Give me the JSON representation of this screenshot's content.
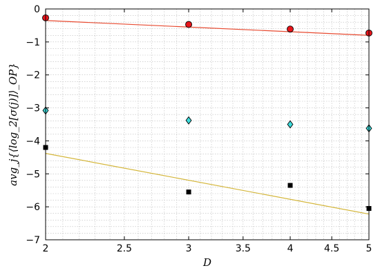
{
  "chart_data": {
    "type": "scatter",
    "title": "",
    "xlabel": "D",
    "ylabel": "avg_j{⟨log_2[σ(j)]⟩_OP}",
    "xscale": "log",
    "xlim": [
      2,
      5
    ],
    "ylim": [
      -7,
      0
    ],
    "grid": true,
    "legend": "none",
    "x_ticks": [
      {
        "value": 2,
        "label": "2"
      },
      {
        "value": 2.5,
        "label": "2.5"
      },
      {
        "value": 3,
        "label": "3"
      },
      {
        "value": 3.5,
        "label": "3.5"
      },
      {
        "value": 4,
        "label": "4"
      },
      {
        "value": 4.5,
        "label": "4.5"
      },
      {
        "value": 5,
        "label": "5"
      }
    ],
    "y_ticks": [
      {
        "value": 0,
        "label": "0"
      },
      {
        "value": -1,
        "label": "−1"
      },
      {
        "value": -2,
        "label": "−2"
      },
      {
        "value": -3,
        "label": "−3"
      },
      {
        "value": -4,
        "label": "−4"
      },
      {
        "value": -5,
        "label": "−5"
      },
      {
        "value": -6,
        "label": "−6"
      },
      {
        "value": -7,
        "label": "−7"
      }
    ],
    "series": [
      {
        "marker": "circle",
        "color": "#e8151b",
        "x": [
          2,
          3,
          4,
          5
        ],
        "y": [
          -0.27,
          -0.47,
          -0.61,
          -0.73
        ]
      },
      {
        "marker": "diamond",
        "color": "#3ddbdb",
        "x": [
          2,
          3,
          4,
          5
        ],
        "y": [
          -3.08,
          -3.38,
          -3.5,
          -3.62
        ]
      },
      {
        "marker": "square",
        "color": "#000000",
        "x": [
          2,
          3,
          4,
          5
        ],
        "y": [
          -4.2,
          -5.55,
          -5.35,
          -6.05
        ]
      }
    ],
    "fit_lines": [
      {
        "color": "#e8492f",
        "x": [
          2,
          5
        ],
        "y": [
          -0.35,
          -0.8
        ]
      },
      {
        "color": "#d4b63a",
        "x": [
          2,
          5
        ],
        "y": [
          -4.38,
          -6.22
        ]
      }
    ]
  }
}
